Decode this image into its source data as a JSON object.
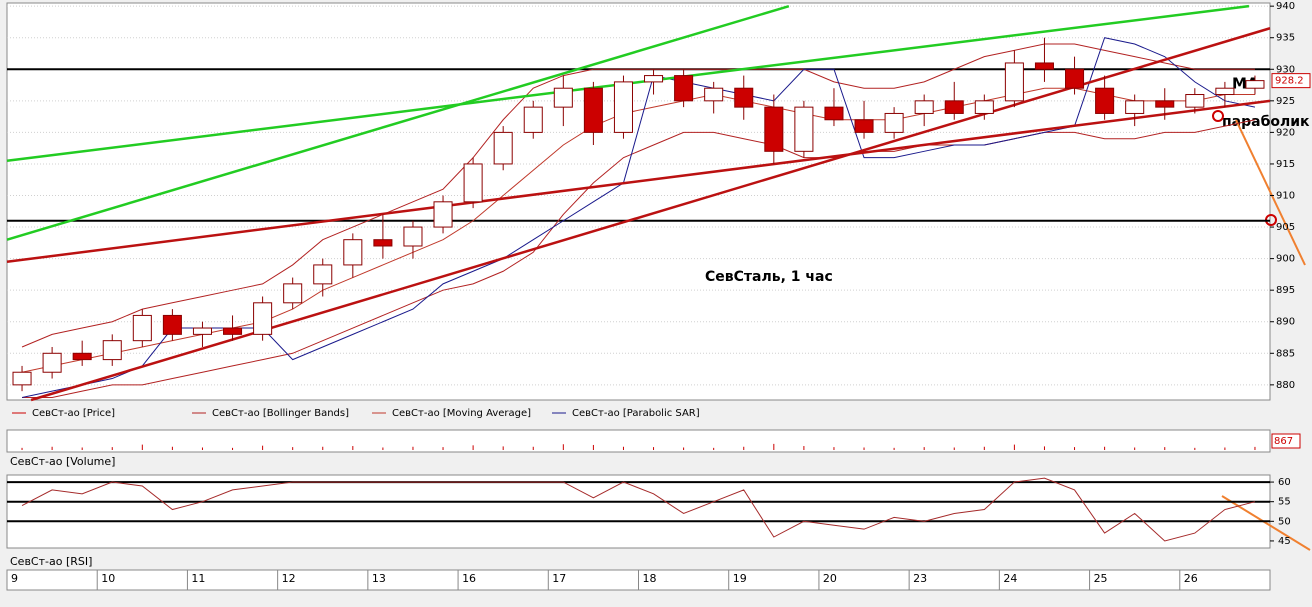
{
  "chart_data": [
    {
      "type": "candlestick",
      "title": "СевСталь,   1 час",
      "annotations": [
        "МА",
        "параболик"
      ],
      "ylim": [
        877.6,
        940.5
      ],
      "yticks": [
        880,
        885,
        890,
        895,
        900,
        905,
        910,
        915,
        920,
        925,
        930,
        935,
        940
      ],
      "hlines": [
        930,
        906
      ],
      "series": [
        {
          "name": "СевСт-ао [Price]",
          "color": "#cc0000",
          "open": [
            880,
            882,
            885,
            884,
            887,
            891,
            888,
            889,
            888,
            893,
            896,
            899,
            903,
            902,
            905,
            909,
            915,
            920,
            924,
            927,
            920,
            928,
            929,
            925,
            927,
            924,
            917,
            924,
            922,
            920,
            923,
            925,
            923,
            925,
            931,
            930,
            927,
            923,
            925,
            924,
            926,
            927
          ],
          "high": [
            883,
            886,
            887,
            888,
            892,
            892,
            890,
            891,
            894,
            897,
            900,
            904,
            907,
            906,
            910,
            916,
            921,
            925,
            929,
            928,
            929,
            930,
            930,
            928,
            929,
            926,
            925,
            927,
            925,
            924,
            926,
            928,
            926,
            933,
            935,
            932,
            929,
            926,
            927,
            927,
            928,
            929
          ],
          "low": [
            879,
            881,
            883,
            883,
            886,
            887,
            886,
            887,
            887,
            892,
            894,
            897,
            900,
            900,
            904,
            908,
            914,
            919,
            921,
            918,
            919,
            926,
            924,
            923,
            922,
            915,
            916,
            921,
            919,
            919,
            921,
            922,
            922,
            924,
            928,
            926,
            922,
            921,
            922,
            923,
            924,
            926
          ],
          "close": [
            882,
            885,
            884,
            887,
            891,
            888,
            889,
            888,
            893,
            896,
            899,
            903,
            902,
            905,
            909,
            915,
            920,
            924,
            927,
            920,
            928,
            929,
            925,
            927,
            924,
            917,
            924,
            922,
            920,
            923,
            925,
            923,
            925,
            931,
            930,
            927,
            923,
            925,
            924,
            926,
            927,
            928.2
          ]
        },
        {
          "name": "СевСт-ао [Bollinger Bands]",
          "color": "#b22222",
          "upper": [
            886,
            888,
            889,
            890,
            892,
            893,
            894,
            895,
            896,
            899,
            903,
            905,
            907,
            909,
            911,
            916,
            922,
            927,
            929,
            930,
            930,
            930,
            930,
            930,
            930,
            930,
            930,
            928,
            927,
            927,
            928,
            930,
            932,
            933,
            934,
            934,
            933,
            932,
            931,
            930,
            930,
            930
          ],
          "lower": [
            878,
            878,
            879,
            880,
            880,
            881,
            882,
            883,
            884,
            885,
            887,
            889,
            891,
            893,
            895,
            896,
            898,
            901,
            907,
            912,
            916,
            918,
            920,
            920,
            919,
            918,
            916,
            916,
            917,
            917,
            918,
            918,
            918,
            919,
            920,
            920,
            919,
            919,
            920,
            920,
            921,
            922
          ]
        },
        {
          "name": "СевСт-ао [Moving Average]",
          "color": "#c0392b",
          "values": [
            882,
            883,
            884,
            885,
            886,
            887,
            888,
            889,
            890,
            892,
            895,
            897,
            899,
            901,
            903,
            906,
            910,
            914,
            918,
            921,
            923,
            924,
            925,
            926,
            925,
            924,
            923,
            922,
            922,
            922,
            923,
            924,
            925,
            926,
            927,
            927,
            926,
            925,
            925,
            925,
            926,
            926
          ]
        },
        {
          "name": "СевСт-ао [Parabolic SAR]",
          "color": "#1a1a8c",
          "values": [
            878,
            879,
            880,
            881,
            883,
            889,
            889,
            889,
            889,
            884,
            886,
            888,
            890,
            892,
            896,
            898,
            900,
            903,
            906,
            909,
            912,
            929,
            928,
            927,
            926,
            925,
            930,
            930,
            916,
            916,
            917,
            918,
            918,
            919,
            920,
            921,
            935,
            934,
            932,
            928,
            925,
            924
          ]
        }
      ],
      "trend_lines": [
        {
          "color": "#22cc22",
          "points": [
            [
              -0.5,
              915.5
            ],
            [
              40.8,
              940
            ]
          ]
        },
        {
          "color": "#22cc22",
          "points": [
            [
              -0.5,
              903
            ],
            [
              25.5,
              940
            ]
          ]
        },
        {
          "color": "#bb1111",
          "points": [
            [
              -0.5,
              899.5
            ],
            [
              41.5,
              925
            ]
          ]
        },
        {
          "color": "#bb1111",
          "points": [
            [
              0.3,
              877.6
            ],
            [
              41.5,
              936.5
            ]
          ]
        }
      ]
    },
    {
      "type": "volume",
      "title": "СевСт-ао [Volume]",
      "color": "#cc0000",
      "ylim": [
        0,
        5000
      ],
      "values": [
        600,
        900,
        700,
        800,
        1500,
        900,
        700,
        600,
        1200,
        800,
        900,
        1100,
        700,
        900,
        800,
        1300,
        1000,
        900,
        1600,
        1400,
        900,
        800,
        700,
        600,
        900,
        1700,
        1100,
        800,
        700,
        600,
        800,
        700,
        900,
        1500,
        1000,
        800,
        900,
        700,
        800,
        600,
        700,
        867
      ]
    },
    {
      "type": "line",
      "title": "СевСт-ао [RSI]",
      "color": "#a52a2a",
      "ylim": [
        43.2,
        61.8
      ],
      "yticks": [
        45,
        50,
        55,
        60
      ],
      "hlines": [
        60,
        55,
        50
      ],
      "values": [
        54,
        58,
        57,
        60,
        59,
        53,
        55,
        58,
        59,
        60,
        60,
        60,
        60,
        60,
        60,
        60,
        60,
        60,
        60,
        56,
        60,
        57,
        52,
        55,
        58,
        46,
        50,
        49,
        48,
        51,
        50,
        52,
        53,
        60,
        61,
        58,
        47,
        52,
        45,
        47,
        53,
        55
      ],
      "days": [
        "9",
        "10",
        "11",
        "12",
        "13",
        "16",
        "17",
        "18",
        "19",
        "20",
        "23",
        "24",
        "25",
        "26"
      ]
    }
  ]
}
